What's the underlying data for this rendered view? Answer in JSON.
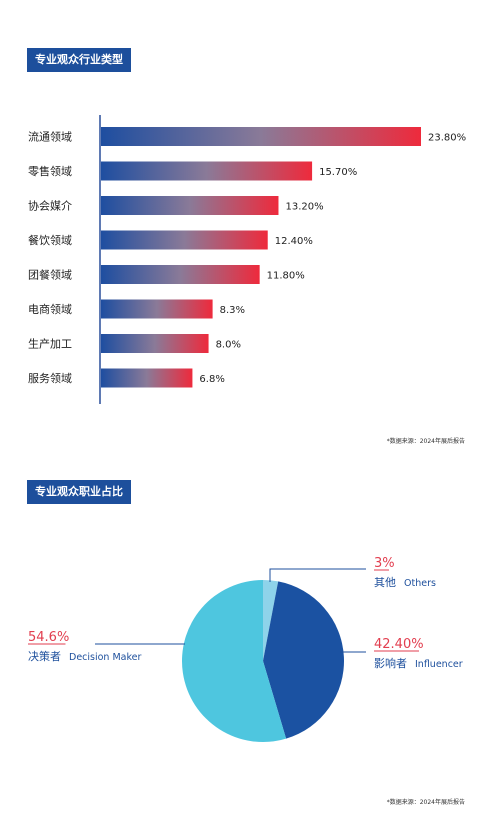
{
  "sections": {
    "industry_title": "专业观众行业类型",
    "occupation_title": "专业观众职业占比"
  },
  "source_note": "*数据来源：2024年展后报告",
  "colors": {
    "title_bg": "#1d4f9c",
    "bar_start": "#1e4ea0",
    "bar_end": "#ee2a3c",
    "pie_blue": "#1b52a2",
    "pie_cyan": "#4ec6df",
    "pie_light": "#8ed3ea",
    "label_red": "#e23e4f",
    "label_blue": "#1d4f9c"
  },
  "chart_data": [
    {
      "type": "bar",
      "orientation": "horizontal",
      "categories": [
        "流通领域",
        "零售领域",
        "协会媒介",
        "餐饮领域",
        "团餐领域",
        "电商领域",
        "生产加工",
        "服务领域"
      ],
      "values": [
        23.8,
        15.7,
        13.2,
        12.4,
        11.8,
        8.3,
        8.0,
        6.8
      ],
      "value_labels": [
        "23.80%",
        "15.70%",
        "13.20%",
        "12.40%",
        "11.80%",
        "8.3%",
        "8.0%",
        "6.8%"
      ],
      "xlim": [
        0,
        23.8
      ],
      "grid": false
    },
    {
      "type": "pie",
      "slices": [
        {
          "value": 3,
          "label_value": "3%",
          "label_cn": "其他",
          "label_en": "Others",
          "color": "#8ed3ea"
        },
        {
          "value": 42.4,
          "label_value": "42.40%",
          "label_cn": "影响者",
          "label_en": "Influencer",
          "color": "#1b52a2"
        },
        {
          "value": 54.6,
          "label_value": "54.6%",
          "label_cn": "决策者",
          "label_en": "Decision Maker",
          "color": "#4ec6df"
        }
      ]
    }
  ]
}
